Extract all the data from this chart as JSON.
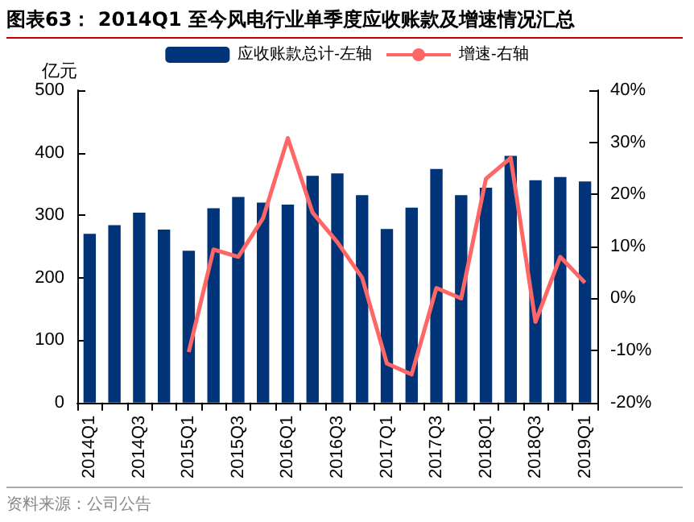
{
  "chart_data": {
    "type": "bar",
    "title": "图表63：  2014Q1 至今风电行业单季度应收账款及增速情况汇总",
    "ylabel": "亿元",
    "categories": [
      "2014Q1",
      null,
      "2014Q3",
      null,
      "2015Q1",
      null,
      "2015Q3",
      null,
      "2016Q1",
      null,
      "2016Q3",
      null,
      "2017Q1",
      null,
      "2017Q3",
      null,
      "2018Q1",
      null,
      "2018Q3",
      null,
      "2019Q1"
    ],
    "series": [
      {
        "name": "应收账款总计-左轴",
        "color": "#003378",
        "values": [
          270,
          284,
          304,
          277,
          243,
          311,
          329,
          320,
          317,
          363,
          367,
          332,
          278,
          312,
          374,
          332,
          344,
          395,
          356,
          361,
          354
        ]
      },
      {
        "name": "增速-右轴",
        "type": "line",
        "axis": "y2",
        "color": "#ff6666",
        "values": [
          null,
          null,
          null,
          null,
          -10.3,
          9.4,
          8,
          15.4,
          30.8,
          16.5,
          10.8,
          4,
          -12.5,
          -14.6,
          2,
          0,
          23,
          27,
          -4.5,
          8,
          3
        ]
      }
    ],
    "ylim": [
      0,
      500
    ],
    "yticks": [
      0,
      100,
      200,
      300,
      400,
      500
    ],
    "y2lim": [
      -20,
      40
    ],
    "y2ticks": [
      {
        "value": -20,
        "label": "-20%"
      },
      {
        "value": -10,
        "label": "-10%"
      },
      {
        "value": 0,
        "label": "0%"
      },
      {
        "value": 10,
        "label": "10%"
      },
      {
        "value": 20,
        "label": "20%"
      },
      {
        "value": 30,
        "label": "30%"
      },
      {
        "value": 40,
        "label": "40%"
      }
    ],
    "grid": false,
    "legend": "top",
    "marker": "none",
    "annotations": [
      "资料来源：公司公告"
    ]
  }
}
